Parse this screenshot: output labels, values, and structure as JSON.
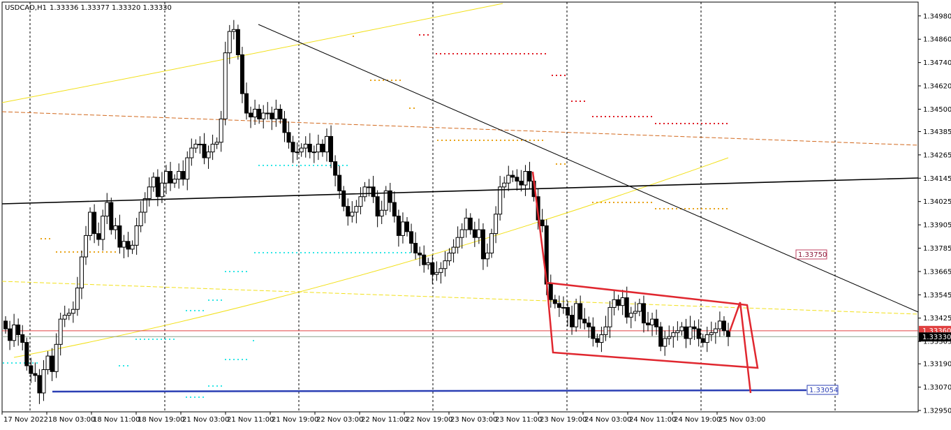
{
  "header": {
    "symbol_tf": "USDCAD,H1",
    "quote": "1.33336 1.33377 1.33320 1.33330"
  },
  "colors": {
    "bull_fill": "#ffffff",
    "bear_fill": "#000000",
    "candle_stroke": "#000000",
    "yellow_line": "#f2e01a",
    "orange_dash": "#d2691e",
    "red_dot": "#e01b24",
    "orange_dot": "#e8a317",
    "cyan_dot": "#2fe6e6",
    "blue_line": "#2b3fb4",
    "pattern_red": "#e0272f",
    "price_line_red": "#e04040",
    "bid_line": "#8aa08a"
  },
  "chart_data": {
    "type": "candlestick",
    "instrument": "USDCAD",
    "timeframe": "H1",
    "ylim": [
      1.3295,
      1.3499
    ],
    "y_ticks": [
      "1.34980",
      "1.34860",
      "1.34740",
      "1.34620",
      "1.34500",
      "1.34385",
      "1.34265",
      "1.34145",
      "1.34025",
      "1.33905",
      "1.33785",
      "1.33665",
      "1.33545",
      "1.33425",
      "1.33305",
      "1.33190",
      "1.33070",
      "1.32950"
    ],
    "x_ticks": [
      "17 Nov 2022",
      "18 Nov 03:00",
      "18 Nov 11:00",
      "18 Nov 19:00",
      "21 Nov 03:00",
      "21 Nov 11:00",
      "21 Nov 19:00",
      "22 Nov 03:00",
      "22 Nov 11:00",
      "22 Nov 19:00",
      "23 Nov 03:00",
      "23 Nov 11:00",
      "23 Nov 19:00",
      "24 Nov 03:00",
      "24 Nov 11:00",
      "24 Nov 19:00",
      "25 Nov 03:00"
    ],
    "current_price": "1.33330",
    "marked_level": "1.33360",
    "annotations": [
      {
        "label": "1.33750",
        "price": 1.3375
      },
      {
        "label": "1.33054",
        "price": 1.33054
      }
    ],
    "bars": {
      "close": [
        1.3337,
        1.3331,
        1.3339,
        1.3334,
        1.333,
        1.3318,
        1.3314,
        1.3313,
        1.3304,
        1.3316,
        1.3323,
        1.3315,
        1.3329,
        1.3342,
        1.3344,
        1.3345,
        1.3347,
        1.3358,
        1.3374,
        1.3385,
        1.3397,
        1.3386,
        1.3383,
        1.3395,
        1.3402,
        1.3388,
        1.339,
        1.3379,
        1.3382,
        1.3378,
        1.338,
        1.339,
        1.3397,
        1.3404,
        1.341,
        1.3415,
        1.3405,
        1.3412,
        1.3418,
        1.3412,
        1.3414,
        1.3418,
        1.3414,
        1.3425,
        1.343,
        1.3432,
        1.3432,
        1.3425,
        1.3428,
        1.3432,
        1.3433,
        1.3445,
        1.3479,
        1.349,
        1.3491,
        1.3478,
        1.3458,
        1.3448,
        1.3446,
        1.345,
        1.3445,
        1.3448,
        1.3448,
        1.3445,
        1.345,
        1.3445,
        1.3438,
        1.3433,
        1.3428,
        1.3428,
        1.343,
        1.3432,
        1.3428,
        1.3428,
        1.3432,
        1.3428,
        1.3436,
        1.3423,
        1.3416,
        1.3408,
        1.34,
        1.3395,
        1.3397,
        1.34,
        1.3405,
        1.341,
        1.341,
        1.3405,
        1.3395,
        1.3398,
        1.3408,
        1.3402,
        1.3395,
        1.3385,
        1.3392,
        1.3387,
        1.3381,
        1.3376,
        1.3375,
        1.337,
        1.3371,
        1.3365,
        1.3366,
        1.3368,
        1.3372,
        1.3376,
        1.3379,
        1.3384,
        1.3388,
        1.3394,
        1.3388,
        1.3384,
        1.3388,
        1.3373,
        1.3376,
        1.3386,
        1.3396,
        1.341,
        1.3412,
        1.3416,
        1.3415,
        1.3413,
        1.3411,
        1.3418,
        1.3413,
        1.3405,
        1.3393,
        1.339,
        1.336,
        1.3352,
        1.335,
        1.3348,
        1.3348,
        1.3344,
        1.3338,
        1.335,
        1.3342,
        1.334,
        1.3338,
        1.3332,
        1.333,
        1.3334,
        1.3338,
        1.3348,
        1.3352,
        1.3349,
        1.3353,
        1.3343,
        1.3345,
        1.3346,
        1.335,
        1.334,
        1.3339,
        1.3342,
        1.3338,
        1.3328,
        1.3332,
        1.3333,
        1.3335,
        1.3336,
        1.3338,
        1.3332,
        1.3338,
        1.3337,
        1.3332,
        1.333,
        1.3334,
        1.3335,
        1.3337,
        1.3341,
        1.3336,
        1.3333
      ]
    },
    "indicators": [
      {
        "name": "ma_yellow_upper",
        "kind": "line"
      },
      {
        "name": "ma_yellow_lower",
        "kind": "line"
      },
      {
        "name": "trend_black_diag",
        "kind": "line"
      },
      {
        "name": "trend_black_horizontal",
        "kind": "line"
      },
      {
        "name": "channel_orange_dashed",
        "kind": "line"
      },
      {
        "name": "channel_yellow_dashed",
        "kind": "line"
      },
      {
        "name": "support_blue",
        "kind": "line"
      },
      {
        "name": "flag_pattern_red",
        "kind": "polyline"
      }
    ]
  }
}
